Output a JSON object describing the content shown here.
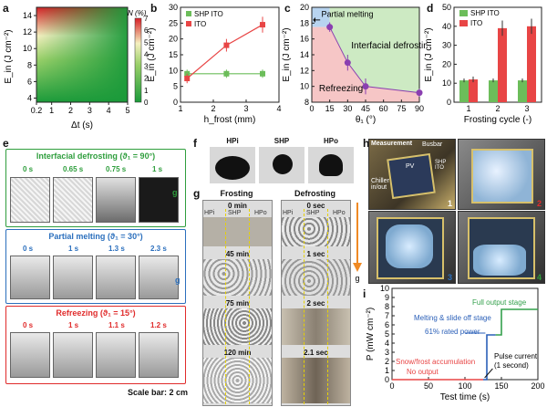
{
  "panel_labels": {
    "a": "a",
    "b": "b",
    "c": "c",
    "d": "d",
    "e": "e",
    "f": "f",
    "g": "g",
    "h": "h",
    "i": "i"
  },
  "chart_data": [
    {
      "panel": "a",
      "type": "heatmap",
      "xlabel": "Δt (s)",
      "ylabel": "E_in (J cm⁻²)",
      "xticks": [
        "0.2",
        "1",
        "2",
        "3",
        "4",
        "5"
      ],
      "yticks": [
        "4",
        "6",
        "8",
        "10",
        "12",
        "14"
      ],
      "xlim": [
        0.2,
        5
      ],
      "ylim": [
        3.5,
        15
      ],
      "colorbar": {
        "title": "N (%)",
        "ticks": [
          "0",
          "1",
          "2",
          "3",
          "4",
          "5",
          "6",
          "7"
        ],
        "range": [
          0,
          7
        ]
      },
      "colors": {
        "low": "#1b9a3a",
        "mid": "#f5f0c0",
        "high": "#d62027"
      }
    },
    {
      "panel": "b",
      "type": "line",
      "xlabel": "h_frost (mm)",
      "ylabel": "E_in (J cm⁻²)",
      "xticks": [
        "1",
        "2",
        "3",
        "4"
      ],
      "yticks": [
        "0",
        "5",
        "10",
        "15",
        "20",
        "25",
        "30"
      ],
      "xlim": [
        1,
        4
      ],
      "ylim": [
        0,
        30
      ],
      "legend": "top-left",
      "series": [
        {
          "name": "SHP ITO",
          "color": "#6cbd5a",
          "x": [
            1.2,
            2.4,
            3.5
          ],
          "y": [
            9,
            9,
            9
          ],
          "err": [
            1.3,
            1.3,
            1.3
          ]
        },
        {
          "name": "ITO",
          "color": "#e84545",
          "x": [
            1.2,
            2.4,
            3.5
          ],
          "y": [
            7.5,
            18,
            24.5
          ],
          "err": [
            1.5,
            2,
            2.5
          ]
        }
      ]
    },
    {
      "panel": "c",
      "type": "scatter",
      "xlabel": "θ₁ (°)",
      "ylabel": "E_in (J cm⁻²)",
      "xticks": [
        "0",
        "15",
        "30",
        "45",
        "60",
        "75",
        "90"
      ],
      "yticks": [
        "8",
        "10",
        "12",
        "14",
        "16",
        "18",
        "20"
      ],
      "xlim": [
        0,
        90
      ],
      "ylim": [
        8,
        20
      ],
      "regions": [
        "Partial melting",
        "Interfacial defrosting",
        "Refreezing"
      ],
      "series": [
        {
          "color": "#8a3fb0",
          "x": [
            15,
            30,
            45,
            90
          ],
          "y": [
            17.5,
            13,
            10,
            9.2
          ],
          "err": [
            0.6,
            1,
            1,
            0.5
          ]
        }
      ]
    },
    {
      "panel": "d",
      "type": "bar",
      "xlabel": "Frosting cycle (-)",
      "ylabel": "E_in (J cm⁻²)",
      "categories": [
        "1",
        "2",
        "3"
      ],
      "yticks": [
        "0",
        "10",
        "20",
        "30",
        "40",
        "50"
      ],
      "ylim": [
        0,
        50
      ],
      "legend": "top-left",
      "series": [
        {
          "name": "SHP ITO",
          "color": "#6cbd5a",
          "values": [
            11.5,
            11.5,
            11.5
          ],
          "err": [
            1,
            1,
            1
          ]
        },
        {
          "name": "ITO",
          "color": "#e84545",
          "values": [
            12,
            39,
            40
          ],
          "err": [
            1.5,
            4,
            4
          ]
        }
      ]
    },
    {
      "panel": "i",
      "type": "line",
      "xlabel": "Test time (s)",
      "ylabel": "P (mW cm⁻²)",
      "xticks": [
        "0",
        "50",
        "100",
        "150",
        "200"
      ],
      "yticks": [
        "0",
        "1",
        "2",
        "3",
        "4",
        "5",
        "6",
        "7",
        "8",
        "9",
        "10"
      ],
      "xlim": [
        0,
        200
      ],
      "ylim": [
        0,
        10
      ],
      "series": [
        {
          "color": "#e84545",
          "x": [
            0,
            125
          ],
          "y": [
            0,
            0
          ]
        },
        {
          "color": "#2a5fb8",
          "x": [
            125,
            130,
            130,
            142
          ],
          "y": [
            0,
            0,
            4.9,
            4.9
          ]
        },
        {
          "color": "#34a04c",
          "x": [
            142,
            150,
            150,
            200
          ],
          "y": [
            4.9,
            4.9,
            7.7,
            7.7
          ]
        }
      ],
      "annotations": [
        "Full output stage",
        "Melting & slide off stage",
        "61% rated power",
        "Pulse current",
        "(1 second)",
        "Snow/frost accumulation",
        "No output"
      ]
    }
  ],
  "panel_e": {
    "sections": [
      {
        "title": "Interfacial defrosting (ϑ₁ = 90°)",
        "color": "#2f9e3d",
        "times": [
          "0 s",
          "0.65 s",
          "0.75 s",
          "1 s"
        ]
      },
      {
        "title": "Partial melting (ϑ₁ = 30°)",
        "color": "#2b6fbd",
        "times": [
          "0 s",
          "1 s",
          "1.3 s",
          "2.3 s"
        ]
      },
      {
        "title": "Refreezing (ϑ₁ = 15°)",
        "color": "#e02b2b",
        "times": [
          "0 s",
          "1 s",
          "1.1 s",
          "1.2 s"
        ]
      }
    ],
    "g_label": "g",
    "scale_bar": "Scale bar: 2 cm"
  },
  "panel_f": {
    "labels": [
      "HPi",
      "SHP",
      "HPo"
    ]
  },
  "panel_g": {
    "frosting_title": "Frosting",
    "defrosting_title": "Defrosting",
    "frosting_times": [
      "0 min",
      "45 min",
      "75 min",
      "120 min"
    ],
    "defrosting_times": [
      "0 sec",
      "1 sec",
      "2 sec",
      "2.1 sec"
    ],
    "zones": [
      "HPi",
      "SHP",
      "HPo"
    ],
    "g_label": "g"
  },
  "panel_h": {
    "labels": [
      "Measurement",
      "Busbar",
      "PV",
      "SHP ITO",
      "Chiller in/out"
    ],
    "numbers": [
      "1",
      "2",
      "3",
      "4"
    ]
  }
}
